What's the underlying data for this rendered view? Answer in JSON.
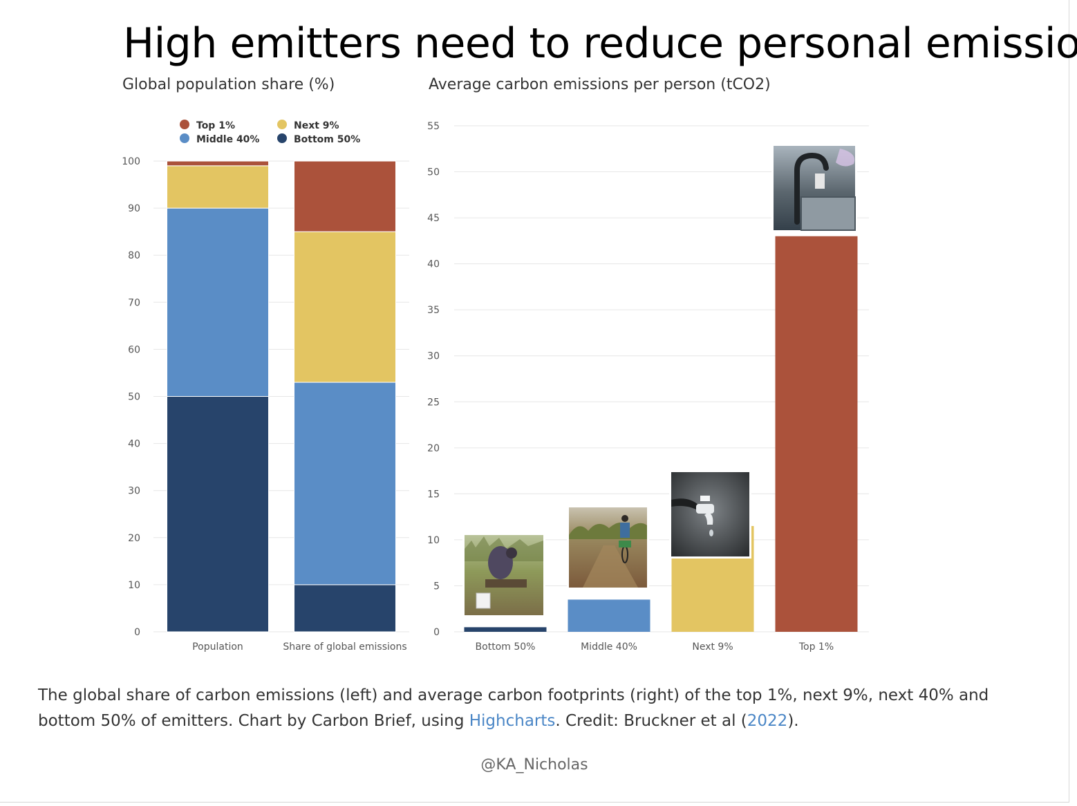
{
  "title": "High emitters need to reduce personal emissions",
  "caption": {
    "part1": "The global share of carbon emissions (left) and average carbon footprints (right) of the top 1%, next 9%, next 40% and bottom 50% of emitters. Chart by Carbon Brief, using ",
    "link1": "Highcharts",
    "part2": ". Credit: Bruckner et al (",
    "link2": "2022",
    "part3": ")."
  },
  "handle": "@KA_Nicholas",
  "colors": {
    "top1": "#ab523b",
    "next9": "#e3c562",
    "middle40": "#5a8dc6",
    "bottom50": "#27446b",
    "grid": "#e6e6e6",
    "axis_text": "#555555",
    "link": "#4a86c6"
  },
  "chart_data": [
    {
      "type": "bar",
      "stacked": true,
      "title": "Global population share (%)",
      "categories": [
        "Population",
        "Share of global emissions"
      ],
      "ylim": [
        0,
        100
      ],
      "yticks": [
        0,
        10,
        20,
        30,
        40,
        50,
        60,
        70,
        80,
        90,
        100
      ],
      "grid": true,
      "legend_position": "top-left",
      "legend": [
        "Top 1%",
        "Next 9%",
        "Middle 40%",
        "Bottom 50%"
      ],
      "series": [
        {
          "name": "Bottom 50%",
          "color_key": "bottom50",
          "values": [
            50,
            10
          ]
        },
        {
          "name": "Middle 40%",
          "color_key": "middle40",
          "values": [
            40,
            43
          ]
        },
        {
          "name": "Next 9%",
          "color_key": "next9",
          "values": [
            9,
            32
          ]
        },
        {
          "name": "Top 1%",
          "color_key": "top1",
          "values": [
            1,
            15
          ]
        }
      ]
    },
    {
      "type": "bar",
      "title": "Average carbon emissions per person (tCO2)",
      "categories": [
        "Bottom 50%",
        "Middle 40%",
        "Next 9%",
        "Top 1%"
      ],
      "color_keys": [
        "bottom50",
        "middle40",
        "next9",
        "top1"
      ],
      "values": [
        0.5,
        3.5,
        11.5,
        43
      ],
      "ylim": [
        0,
        55
      ],
      "yticks": [
        0,
        5,
        10,
        15,
        20,
        25,
        30,
        35,
        40,
        45,
        50,
        55
      ],
      "grid": true,
      "photos": [
        "woman-at-well-photo",
        "cyclist-on-dirt-road-photo",
        "dripping-tap-photo",
        "kitchen-faucet-photo"
      ]
    }
  ]
}
